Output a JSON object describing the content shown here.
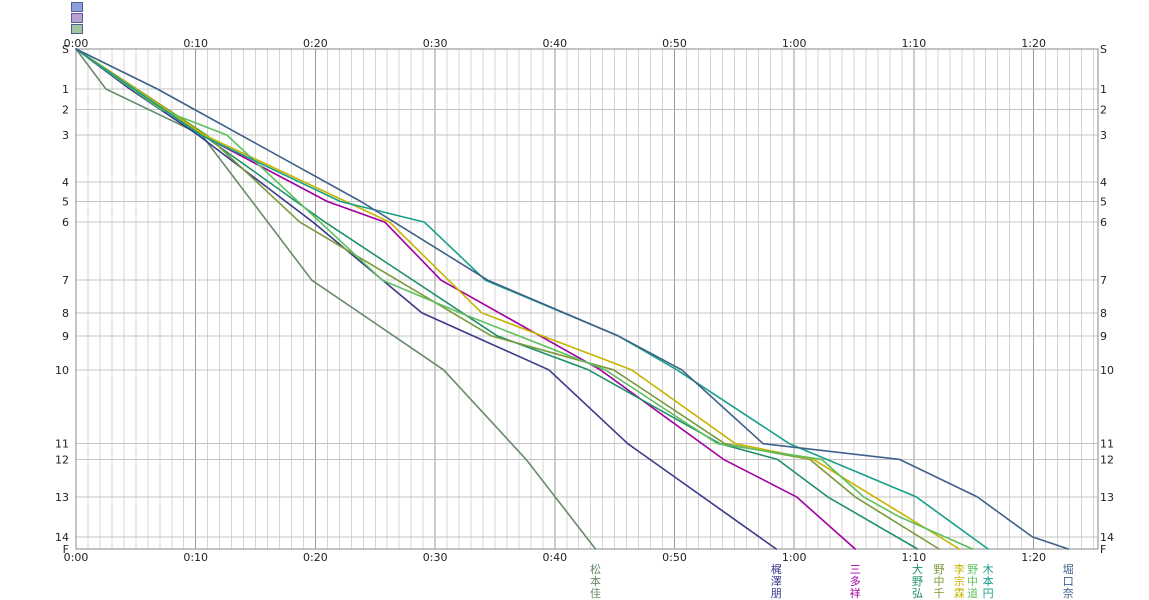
{
  "chart_data": {
    "type": "line",
    "x_ticks": [
      "0:00",
      "0:10",
      "0:20",
      "0:30",
      "0:40",
      "0:50",
      "1:00",
      "1:10",
      "1:20"
    ],
    "y_ticks": [
      {
        "label": "S",
        "pos": 0
      },
      {
        "label": "1",
        "pos": 1
      },
      {
        "label": "2",
        "pos": 2
      },
      {
        "label": "3",
        "pos": 3
      },
      {
        "label": "4",
        "pos": 4
      },
      {
        "label": "5",
        "pos": 5
      },
      {
        "label": "6",
        "pos": 6
      },
      {
        "label": "7",
        "pos": 7
      },
      {
        "label": "8",
        "pos": 8
      },
      {
        "label": "9",
        "pos": 9
      },
      {
        "label": "10",
        "pos": 10
      },
      {
        "label": "11",
        "pos": 11
      },
      {
        "label": "12",
        "pos": 12
      },
      {
        "label": "13",
        "pos": 13
      },
      {
        "label": "14",
        "pos": 14
      },
      {
        "label": "F",
        "pos": 15
      }
    ],
    "y_position_minutes": [
      0,
      3.3,
      5,
      7.1,
      11,
      12.6,
      14.3,
      19.1,
      21.8,
      23.7,
      26.5,
      32.6,
      33.9,
      37,
      40.3,
      41.3
    ],
    "xlim_minutes": [
      0,
      85
    ],
    "grid": true,
    "series": [
      {
        "name": "松本佳",
        "label": [
          "松",
          "本",
          "佳"
        ],
        "color": "#6a8a6a",
        "x": [
          0,
          2.5,
          10.5,
          19.7,
          30.7,
          37.6,
          43.4
        ],
        "y": [
          0,
          1,
          3,
          7,
          10,
          12,
          15
        ]
      },
      {
        "name": "梶澤朋",
        "label": [
          "梶",
          "澤",
          "朋"
        ],
        "color": "#3a3a8a",
        "x": [
          0,
          4.5,
          10.2,
          19.8,
          28.9,
          39.5,
          46.1,
          58.5
        ],
        "y": [
          0,
          1,
          3,
          6,
          8,
          10,
          11,
          15
        ]
      },
      {
        "name": "三多祥",
        "label": [
          "三",
          "多",
          "祥"
        ],
        "color": "#a000a0",
        "x": [
          0,
          10.5,
          21,
          25.8,
          30.5,
          43.8,
          54.1,
          60.2,
          65.1
        ],
        "y": [
          0,
          3,
          5,
          6,
          7,
          10,
          12,
          13,
          15
        ]
      },
      {
        "name": "大野弘",
        "label": [
          "大",
          "野",
          "弘"
        ],
        "color": "#20906a",
        "x": [
          0,
          10.6,
          20.8,
          35.2,
          42.8,
          53.8,
          58.6,
          62.8,
          70.3
        ],
        "y": [
          0,
          3,
          6,
          9,
          10,
          11,
          12,
          13,
          15
        ]
      },
      {
        "name": "野中千",
        "label": [
          "野",
          "中",
          "千"
        ],
        "color": "#7a9a3a",
        "x": [
          0,
          10.9,
          18.7,
          34.7,
          44.9,
          54.2,
          61.3,
          65.1,
          72.1
        ],
        "y": [
          0,
          3,
          6,
          9,
          10,
          11,
          12,
          13,
          15
        ]
      },
      {
        "name": "李宗霖",
        "label": [
          "李",
          "宗",
          "霖"
        ],
        "color": "#c8b400",
        "x": [
          0,
          10.7,
          26.2,
          33.9,
          46.4,
          55.1,
          61.6,
          66.7,
          73.8
        ],
        "y": [
          0,
          3,
          6,
          8,
          10,
          11,
          12,
          13,
          15
        ]
      },
      {
        "name": "野中道",
        "label": [
          "野",
          "中",
          "道"
        ],
        "color": "#5fbf5f",
        "x": [
          0,
          7.1,
          12.6,
          25.6,
          32.1,
          44.2,
          53.6,
          62.3,
          65.8,
          68.8,
          74.9
        ],
        "y": [
          0,
          2,
          3,
          7,
          8,
          10,
          11,
          12,
          13,
          13.5,
          15
        ]
      },
      {
        "name": "木本円",
        "label": [
          "木",
          "本",
          "円"
        ],
        "color": "#18a08a",
        "x": [
          0,
          10.4,
          22.1,
          29.1,
          34.2,
          45.3,
          50.2,
          59.6,
          70.2,
          76.2
        ],
        "y": [
          0,
          3,
          5,
          6,
          7,
          9,
          10,
          11,
          13,
          15
        ]
      },
      {
        "name": "堀口奈",
        "label": [
          "堀",
          "口",
          "奈"
        ],
        "color": "#40608a",
        "x": [
          0,
          6.8,
          9.9,
          23.8,
          34.4,
          45.3,
          50.6,
          57.4,
          68.8,
          75.3,
          79.9,
          82.9
        ],
        "y": [
          0,
          1,
          2,
          5,
          7,
          9,
          10,
          11,
          12,
          13,
          14,
          15
        ]
      }
    ]
  }
}
